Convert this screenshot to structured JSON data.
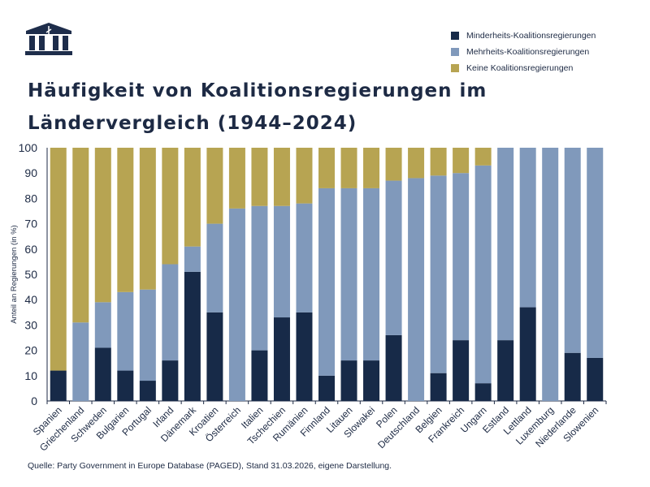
{
  "title": "Häufigkeit von Koalitionsregierungen im Ländervergleich (1944–2024)",
  "source": "Quelle: Party Government in Europe Database (PAGED), Stand 31.03.2026, eigene Darstellung.",
  "colors": {
    "minority": "#172a48",
    "majority": "#8099bb",
    "none": "#b7a452",
    "text": "#1d2a44",
    "logo": "#1e2d4b"
  },
  "logo_icon": "building-columns-icon",
  "chart_data": {
    "type": "bar",
    "stacked": true,
    "ylabel": "Anteil an Regierungen (in %)",
    "ylim": [
      0,
      100
    ],
    "yticks": [
      0,
      10,
      20,
      30,
      40,
      50,
      60,
      70,
      80,
      90,
      100
    ],
    "grid": false,
    "legend_position": "top-right",
    "categories": [
      "Spanien",
      "Griechenland",
      "Schweden",
      "Bulgarien",
      "Portugal",
      "Irland",
      "Dänemark",
      "Kroatien",
      "Österreich",
      "Italien",
      "Tschechien",
      "Rumänien",
      "Finnland",
      "Litauen",
      "Slowakei",
      "Polen",
      "Deutschland",
      "Belgien",
      "Frankreich",
      "Ungarn",
      "Estland",
      "Lettland",
      "Luxemburg",
      "Niederlande",
      "Slowenien"
    ],
    "series": [
      {
        "name": "Minderheits-Koalitionsregierungen",
        "color": "#172a48",
        "values": [
          12,
          0,
          21,
          12,
          8,
          16,
          51,
          35,
          0,
          20,
          33,
          35,
          10,
          16,
          16,
          26,
          0,
          11,
          24,
          7,
          24,
          37,
          0,
          19,
          17
        ]
      },
      {
        "name": "Mehrheits-Koalitionsregierungen",
        "color": "#8099bb",
        "values": [
          0,
          31,
          18,
          31,
          36,
          38,
          10,
          35,
          76,
          57,
          44,
          43,
          74,
          68,
          68,
          61,
          88,
          78,
          66,
          86,
          76,
          63,
          100,
          81,
          83
        ]
      },
      {
        "name": "Keine Koalitionsregierungen",
        "color": "#b7a452",
        "values": [
          88,
          69,
          61,
          57,
          56,
          46,
          39,
          30,
          24,
          23,
          23,
          22,
          16,
          16,
          16,
          13,
          12,
          11,
          10,
          7,
          0,
          0,
          0,
          0,
          0
        ]
      }
    ]
  }
}
